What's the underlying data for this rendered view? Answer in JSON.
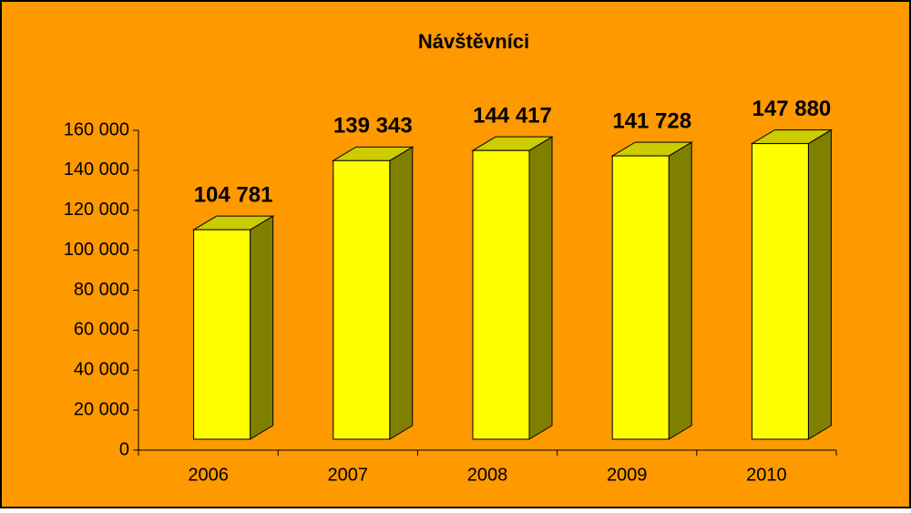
{
  "chart_data": {
    "type": "bar3d",
    "title": "Návštěvníci",
    "categories": [
      "2006",
      "2007",
      "2008",
      "2009",
      "2010"
    ],
    "values": [
      104781,
      139343,
      144417,
      141728,
      147880
    ],
    "value_labels": [
      "104 781",
      "139 343",
      "144 417",
      "141 728",
      "147 880"
    ],
    "color": "#ffff00",
    "side_color": "#808000",
    "top_color": "#cccc00",
    "background": "#ff9900",
    "ylim": [
      0,
      160000
    ],
    "yticks": [
      {
        "value": 0,
        "label": "0"
      },
      {
        "value": 20000,
        "label": "20 000"
      },
      {
        "value": 40000,
        "label": "40 000"
      },
      {
        "value": 60000,
        "label": "60 000"
      },
      {
        "value": 80000,
        "label": "80 000"
      },
      {
        "value": 100000,
        "label": "100 000"
      },
      {
        "value": 120000,
        "label": "120 000"
      },
      {
        "value": 140000,
        "label": "140 000"
      },
      {
        "value": 160000,
        "label": "160 000"
      }
    ]
  }
}
